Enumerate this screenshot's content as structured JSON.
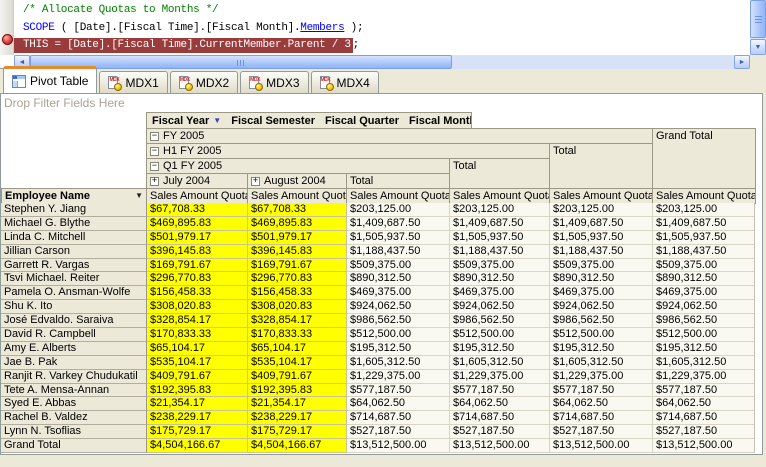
{
  "code": {
    "comment": "/* Allocate Quotas to Months */",
    "scope_keyword": "SCOPE",
    "scope_body": " ( [Date].[Fiscal Time].[Fiscal Month].",
    "scope_members": "Members",
    "scope_end": " );",
    "breakpoint_line": "THIS = [Date].[Fiscal Time].CurrentMember.Parent / 3",
    "breakpoint_line_end": ";"
  },
  "icons": {
    "mdx_text": "MDX",
    "dropdown_arrow": "▼",
    "collapse_glyph": "−",
    "expand_glyph": "+",
    "scroll_left": "◄",
    "scroll_right": "►",
    "scroll_down": "▼"
  },
  "tabs": [
    {
      "label": "Pivot Table"
    },
    {
      "label": "MDX1"
    },
    {
      "label": "MDX2"
    },
    {
      "label": "MDX3"
    },
    {
      "label": "MDX4"
    }
  ],
  "pivot": {
    "drop_filter_text": "Drop Filter Fields Here",
    "column_fields": [
      "Fiscal Year",
      "Fiscal Semester",
      "Fiscal Quarter",
      "Fiscal Month"
    ],
    "row_field": "Employee Name",
    "headers": {
      "fiscal_year": "FY 2005",
      "semester": "H1 FY 2005",
      "quarter": "Q1 FY 2005",
      "month1": "July 2004",
      "month2": "August 2004",
      "total": "Total",
      "grand_total": "Grand Total",
      "measure": "Sales Amount Quota"
    },
    "rows": [
      {
        "name": "Stephen Y. Jiang",
        "monthly": "$67,708.33",
        "total": "$203,125.00"
      },
      {
        "name": "Michael G. Blythe",
        "monthly": "$469,895.83",
        "total": "$1,409,687.50"
      },
      {
        "name": "Linda C. Mitchell",
        "monthly": "$501,979.17",
        "total": "$1,505,937.50"
      },
      {
        "name": "Jillian Carson",
        "monthly": "$396,145.83",
        "total": "$1,188,437.50"
      },
      {
        "name": "Garrett R. Vargas",
        "monthly": "$169,791.67",
        "total": "$509,375.00"
      },
      {
        "name": "Tsvi Michael. Reiter",
        "monthly": "$296,770.83",
        "total": "$890,312.50"
      },
      {
        "name": "Pamela O. Ansman-Wolfe",
        "monthly": "$156,458.33",
        "total": "$469,375.00"
      },
      {
        "name": "Shu K. Ito",
        "monthly": "$308,020.83",
        "total": "$924,062.50"
      },
      {
        "name": "José Edvaldo. Saraiva",
        "monthly": "$328,854.17",
        "total": "$986,562.50"
      },
      {
        "name": "David R. Campbell",
        "monthly": "$170,833.33",
        "total": "$512,500.00"
      },
      {
        "name": "Amy E. Alberts",
        "monthly": "$65,104.17",
        "total": "$195,312.50"
      },
      {
        "name": "Jae B. Pak",
        "monthly": "$535,104.17",
        "total": "$1,605,312.50"
      },
      {
        "name": "Ranjit R. Varkey Chudukatil",
        "monthly": "$409,791.67",
        "total": "$1,229,375.00"
      },
      {
        "name": "Tete A. Mensa-Annan",
        "monthly": "$192,395.83",
        "total": "$577,187.50"
      },
      {
        "name": "Syed E. Abbas",
        "monthly": "$21,354.17",
        "total": "$64,062.50"
      },
      {
        "name": "Rachel B. Valdez",
        "monthly": "$238,229.17",
        "total": "$714,687.50"
      },
      {
        "name": "Lynn N. Tsoflias",
        "monthly": "$175,729.17",
        "total": "$527,187.50"
      },
      {
        "name": "Grand Total",
        "monthly": "$4,504,166.67",
        "total": "$13,512,500.00"
      }
    ]
  },
  "colors": {
    "highlight_line_bg": "#9a3c3c",
    "breakpoint_red": "#cc3030",
    "month_cell_yellow": "#ffff00",
    "active_tab_stripe": "#e68b2c",
    "keyword_blue": "#0000ff",
    "comment_green": "#008000"
  }
}
